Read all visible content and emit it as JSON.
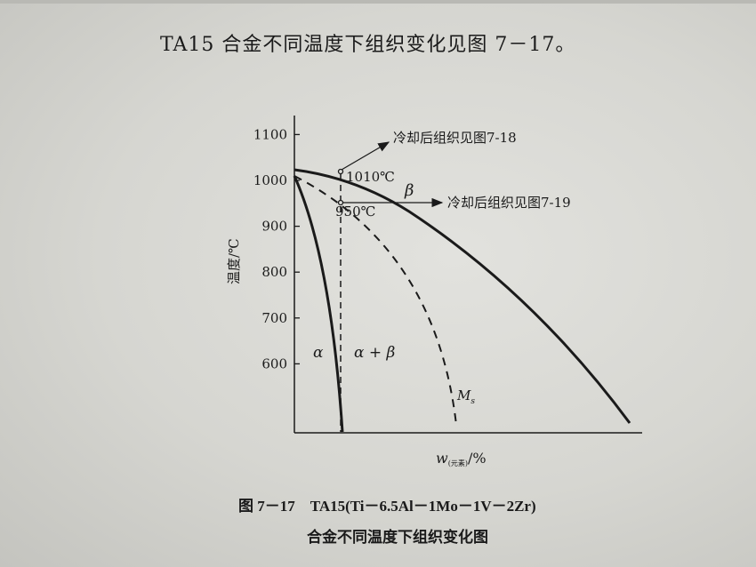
{
  "page": {
    "intro_text": "TA15 合金不同温度下组织变化见图 7－17。",
    "caption_line1": "图 7－17　TA15(Ti－6.5Al－1Mo－1V－2Zr)",
    "caption_line2": "合金不同温度下组织变化图"
  },
  "chart_data": {
    "type": "line",
    "title": "",
    "ylabel": "温度/℃",
    "xlabel_main": "w",
    "xlabel_sub": "(元素)",
    "xlabel_unit": "/%",
    "y_ticks": [
      "1100",
      "1000",
      "900",
      "800",
      "700",
      "600"
    ],
    "ylim": [
      450,
      1100
    ],
    "grid": false,
    "curves": [
      {
        "name": "β",
        "style": "solid",
        "description_start_temp": 1020
      },
      {
        "name": "α",
        "style": "solid"
      },
      {
        "name": "Ms",
        "style": "dashed"
      }
    ],
    "region_labels": [
      "α",
      "α + β",
      "β"
    ],
    "ms_label": "M",
    "ms_sub": "s",
    "annotations": [
      {
        "temp_label": "1010℃",
        "value": 1010,
        "arrow_text": "冷却后组织见图7-18"
      },
      {
        "temp_label": "950℃",
        "value": 950,
        "arrow_text": "冷却后组织见图7-19"
      }
    ]
  }
}
